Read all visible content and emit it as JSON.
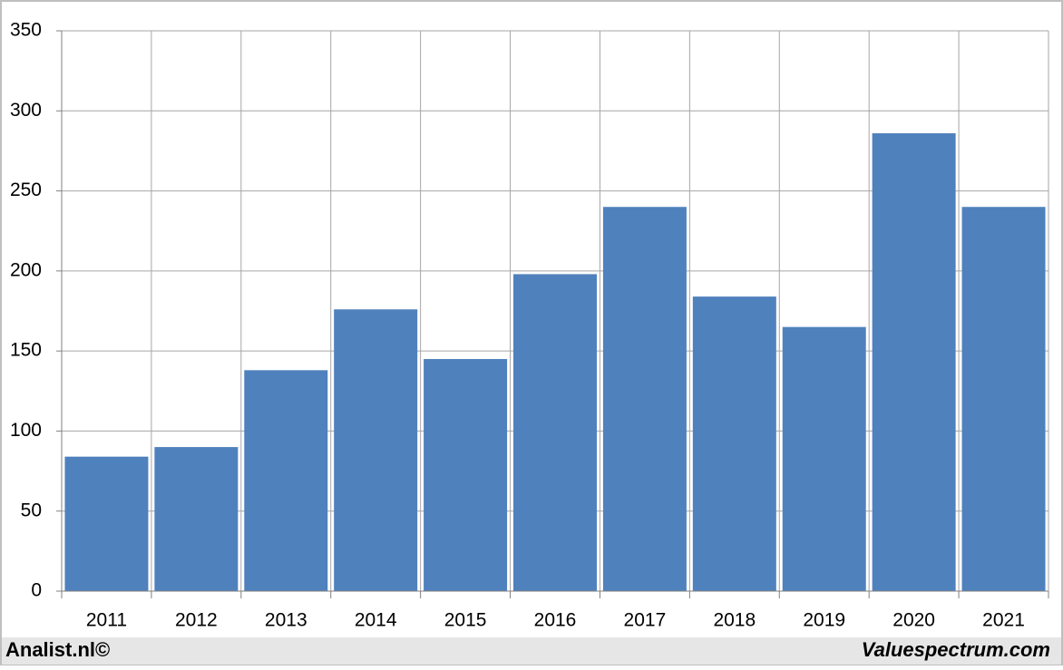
{
  "chart_data": {
    "type": "bar",
    "categories": [
      "2011",
      "2012",
      "2013",
      "2014",
      "2015",
      "2016",
      "2017",
      "2018",
      "2019",
      "2020",
      "2021"
    ],
    "values": [
      84,
      90,
      138,
      176,
      145,
      198,
      240,
      184,
      165,
      286,
      240
    ],
    "color": "#4f81bd",
    "ylim": [
      0,
      350
    ],
    "yticks": [
      0,
      50,
      100,
      150,
      200,
      250,
      300,
      350
    ],
    "grid": true
  },
  "footer": {
    "left": "Analist.nl©",
    "right": "Valuespectrum.com"
  }
}
